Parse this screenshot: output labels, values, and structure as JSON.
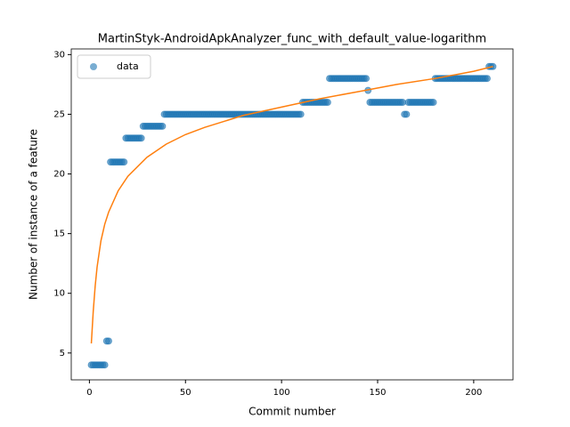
{
  "chart_data": {
    "type": "scatter",
    "title": "MartinStyk-AndroidApkAnalyzer_func_with_default_value-logarithm",
    "xlabel": "Commit number",
    "ylabel": "Number of instance of a feature",
    "xlim": [
      -9.45,
      220.45
    ],
    "ylim": [
      2.75,
      30.25
    ],
    "xticks": [
      0,
      50,
      100,
      150,
      200
    ],
    "yticks": [
      5,
      10,
      15,
      20,
      25,
      30
    ],
    "legend": "upper left",
    "series": [
      {
        "name": "data",
        "kind": "scatter",
        "color": "#1f77b4",
        "x": [
          1,
          2,
          3,
          4,
          5,
          6,
          7,
          8,
          9,
          10,
          11,
          12,
          13,
          14,
          15,
          16,
          17,
          18,
          19,
          20,
          21,
          22,
          23,
          24,
          25,
          26,
          27,
          28,
          29,
          30,
          31,
          32,
          33,
          34,
          35,
          36,
          37,
          38,
          39,
          40,
          41,
          42,
          43,
          44,
          45,
          46,
          47,
          48,
          49,
          50,
          51,
          52,
          53,
          54,
          55,
          56,
          57,
          58,
          59,
          60,
          61,
          62,
          63,
          64,
          65,
          66,
          67,
          68,
          69,
          70,
          71,
          72,
          73,
          74,
          75,
          76,
          77,
          78,
          79,
          80,
          81,
          82,
          83,
          84,
          85,
          86,
          87,
          88,
          89,
          90,
          91,
          92,
          93,
          94,
          95,
          96,
          97,
          98,
          99,
          100,
          101,
          102,
          103,
          104,
          105,
          106,
          107,
          108,
          109,
          110,
          111,
          112,
          113,
          114,
          115,
          116,
          117,
          118,
          119,
          120,
          121,
          122,
          123,
          124,
          125,
          126,
          127,
          128,
          129,
          130,
          131,
          132,
          133,
          134,
          135,
          136,
          137,
          138,
          139,
          140,
          141,
          142,
          143,
          144,
          145,
          146,
          147,
          148,
          149,
          150,
          151,
          152,
          153,
          154,
          155,
          156,
          157,
          158,
          159,
          160,
          161,
          162,
          163,
          164,
          165,
          166,
          167,
          168,
          169,
          170,
          171,
          172,
          173,
          174,
          175,
          176,
          177,
          178,
          179,
          180,
          181,
          182,
          183,
          184,
          185,
          186,
          187,
          188,
          189,
          190,
          191,
          192,
          193,
          194,
          195,
          196,
          197,
          198,
          199,
          200,
          201,
          202,
          203,
          204,
          205,
          206,
          207,
          208,
          209,
          210
        ],
        "values": [
          4,
          4,
          4,
          4,
          4,
          4,
          4,
          4,
          6,
          6,
          21,
          21,
          21,
          21,
          21,
          21,
          21,
          21,
          23,
          23,
          23,
          23,
          23,
          23,
          23,
          23,
          23,
          24,
          24,
          24,
          24,
          24,
          24,
          24,
          24,
          24,
          24,
          24,
          25,
          25,
          25,
          25,
          25,
          25,
          25,
          25,
          25,
          25,
          25,
          25,
          25,
          25,
          25,
          25,
          25,
          25,
          25,
          25,
          25,
          25,
          25,
          25,
          25,
          25,
          25,
          25,
          25,
          25,
          25,
          25,
          25,
          25,
          25,
          25,
          25,
          25,
          25,
          25,
          25,
          25,
          25,
          25,
          25,
          25,
          25,
          25,
          25,
          25,
          25,
          25,
          25,
          25,
          25,
          25,
          25,
          25,
          25,
          25,
          25,
          25,
          25,
          25,
          25,
          25,
          25,
          25,
          25,
          25,
          25,
          25,
          26,
          26,
          26,
          26,
          26,
          26,
          26,
          26,
          26,
          26,
          26,
          26,
          26,
          26,
          28,
          28,
          28,
          28,
          28,
          28,
          28,
          28,
          28,
          28,
          28,
          28,
          28,
          28,
          28,
          28,
          28,
          28,
          28,
          28,
          27,
          26,
          26,
          26,
          26,
          26,
          26,
          26,
          26,
          26,
          26,
          26,
          26,
          26,
          26,
          26,
          26,
          26,
          26,
          25,
          25,
          26,
          26,
          26,
          26,
          26,
          26,
          26,
          26,
          26,
          26,
          26,
          26,
          26,
          26,
          28,
          28,
          28,
          28,
          28,
          28,
          28,
          28,
          28,
          28,
          28,
          28,
          28,
          28,
          28,
          28,
          28,
          28,
          28,
          28,
          28,
          28,
          28,
          28,
          28,
          28,
          28,
          28,
          29,
          29,
          29
        ]
      },
      {
        "kind": "line",
        "color": "#ff7f0e",
        "x": [
          1,
          2,
          3,
          4,
          6,
          8,
          10,
          15,
          20,
          30,
          40,
          50,
          60,
          80,
          100,
          120,
          140,
          160,
          180,
          200,
          210
        ],
        "values": [
          5.8,
          8.5,
          10.6,
          12.2,
          14.4,
          15.8,
          16.8,
          18.6,
          19.8,
          21.4,
          22.5,
          23.3,
          23.9,
          24.9,
          25.6,
          26.3,
          26.9,
          27.5,
          28.0,
          28.6,
          29.0
        ]
      }
    ]
  }
}
